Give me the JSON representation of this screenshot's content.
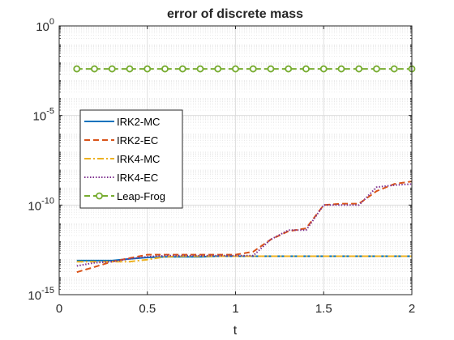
{
  "chart_data": {
    "type": "line",
    "title": "error of discrete mass",
    "xlabel": "t",
    "ylabel": "",
    "xlim": [
      0,
      2
    ],
    "ylim": [
      1e-15,
      1
    ],
    "yscale": "log",
    "grid": true,
    "minor_grid": true,
    "legend_position": "left-middle",
    "x_ticks": [
      {
        "value": 0,
        "label": "0"
      },
      {
        "value": 0.5,
        "label": "0.5"
      },
      {
        "value": 1,
        "label": "1"
      },
      {
        "value": 1.5,
        "label": "1.5"
      },
      {
        "value": 2,
        "label": "2"
      }
    ],
    "y_ticks": [
      {
        "value": 1,
        "base": "10",
        "exp": "0"
      },
      {
        "value": 1e-05,
        "base": "10",
        "exp": "-5"
      },
      {
        "value": 1e-10,
        "base": "10",
        "exp": "-10"
      },
      {
        "value": 1e-15,
        "base": "10",
        "exp": "-15"
      }
    ],
    "series": [
      {
        "name": "IRK2-MC",
        "color": "#0072BD",
        "dash": "solid",
        "marker": "none",
        "x": [
          0.1,
          0.2,
          0.3,
          0.4,
          0.5,
          0.6,
          0.7,
          0.8,
          0.9,
          1.0,
          1.1,
          1.2,
          1.3,
          1.4,
          1.5,
          1.6,
          1.7,
          1.8,
          1.9,
          2.0
        ],
        "y": [
          8e-14,
          8e-14,
          8e-14,
          1e-13,
          1.2e-13,
          1.3e-13,
          1.3e-13,
          1.3e-13,
          1.4e-13,
          1.4e-13,
          1.4e-13,
          1.4e-13,
          1.4e-13,
          1.4e-13,
          1.4e-13,
          1.4e-13,
          1.4e-13,
          1.4e-13,
          1.4e-13,
          1.4e-13
        ]
      },
      {
        "name": "IRK2-EC",
        "color": "#D95319",
        "dash": "dashed",
        "marker": "none",
        "x": [
          0.1,
          0.2,
          0.3,
          0.4,
          0.5,
          0.6,
          0.7,
          0.8,
          0.9,
          1.0,
          1.1,
          1.2,
          1.3,
          1.4,
          1.5,
          1.6,
          1.7,
          1.8,
          1.9,
          2.0
        ],
        "y": [
          1.8e-14,
          3.5e-14,
          7e-14,
          1.1e-13,
          1.7e-13,
          1.7e-13,
          1.7e-13,
          1.7e-13,
          1.7e-13,
          1.7e-13,
          2.5e-13,
          1.2e-12,
          3.5e-12,
          5e-12,
          1e-10,
          1.2e-10,
          1.2e-10,
          6e-10,
          1.5e-09,
          2.1e-09
        ]
      },
      {
        "name": "IRK4-MC",
        "color": "#EDB120",
        "dash": "dashdot",
        "marker": "none",
        "x": [
          0.1,
          0.2,
          0.3,
          0.4,
          0.5,
          0.6,
          0.7,
          0.8,
          0.9,
          1.0,
          1.1,
          1.2,
          1.3,
          1.4,
          1.5,
          1.6,
          1.7,
          1.8,
          1.9,
          2.0
        ],
        "y": [
          7e-14,
          7e-14,
          7e-14,
          7e-14,
          9e-14,
          1.3e-13,
          1.4e-13,
          1.4e-13,
          1.4e-13,
          1.4e-13,
          1.4e-13,
          1.4e-13,
          1.4e-13,
          1.4e-13,
          1.4e-13,
          1.4e-13,
          1.4e-13,
          1.4e-13,
          1.4e-13,
          1.4e-13
        ]
      },
      {
        "name": "IRK4-EC",
        "color": "#7E2F8E",
        "dash": "dotted",
        "marker": "none",
        "x": [
          0.1,
          0.2,
          0.3,
          0.4,
          0.5,
          0.6,
          0.7,
          0.8,
          0.9,
          1.0,
          1.1,
          1.2,
          1.3,
          1.4,
          1.5,
          1.6,
          1.7,
          1.8,
          1.9,
          2.0
        ],
        "y": [
          4e-14,
          6e-14,
          7e-14,
          1e-13,
          1.3e-13,
          1.5e-13,
          1.5e-13,
          1.5e-13,
          1.5e-13,
          1.5e-13,
          1.5e-13,
          1.2e-12,
          4e-12,
          4e-12,
          1e-10,
          1e-10,
          1e-10,
          1e-09,
          1.3e-09,
          1.5e-09
        ]
      },
      {
        "name": "Leap-Frog",
        "color": "#77AC30",
        "dash": "dashed",
        "marker": "circle",
        "x": [
          0.1,
          0.2,
          0.3,
          0.4,
          0.5,
          0.6,
          0.7,
          0.8,
          0.9,
          1.0,
          1.1,
          1.2,
          1.3,
          1.4,
          1.5,
          1.6,
          1.7,
          1.8,
          1.9,
          2.0
        ],
        "y": [
          0.004,
          0.004,
          0.004,
          0.004,
          0.004,
          0.004,
          0.004,
          0.004,
          0.004,
          0.004,
          0.004,
          0.004,
          0.004,
          0.004,
          0.004,
          0.004,
          0.004,
          0.004,
          0.004,
          0.004
        ]
      }
    ]
  }
}
